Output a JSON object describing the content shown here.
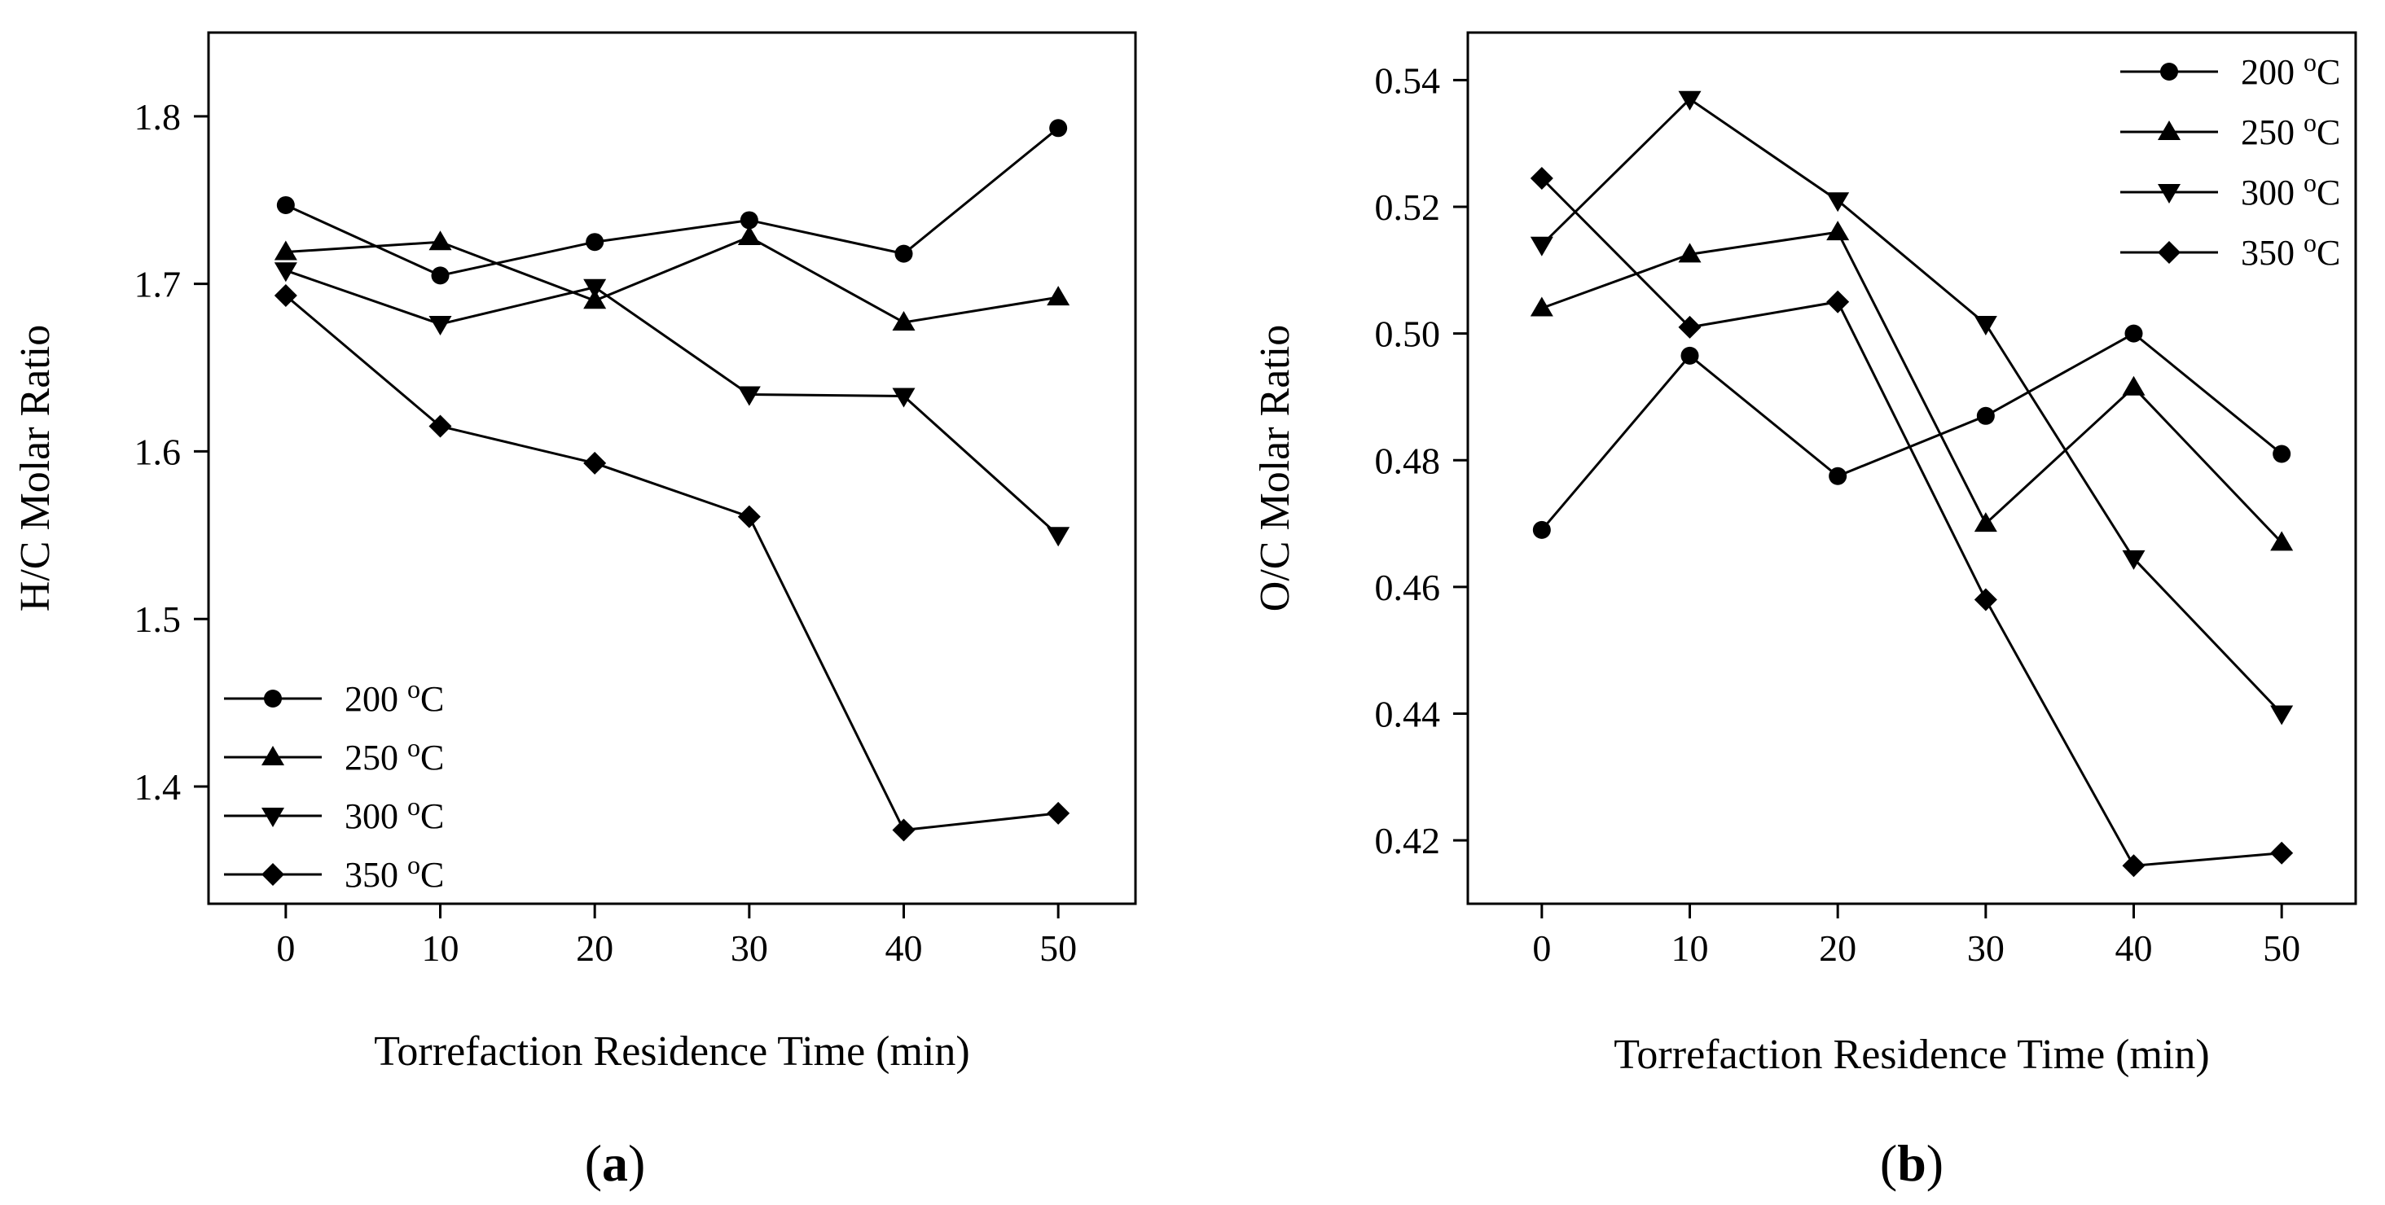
{
  "chart_data": [
    {
      "type": "line",
      "panel_label": "a",
      "xlabel": "Torrefaction Residence Time (min)",
      "ylabel": "H/C Molar Ratio",
      "x": [
        0,
        10,
        20,
        30,
        40,
        50
      ],
      "xticks": [
        "0",
        "10",
        "20",
        "30",
        "40",
        "50"
      ],
      "xlim": [
        -5,
        55
      ],
      "ylim": [
        1.33,
        1.85
      ],
      "yticks": [
        "1.4",
        "1.5",
        "1.6",
        "1.7",
        "1.8"
      ],
      "legend_position": "bottom-left",
      "series": [
        {
          "name": "200",
          "unit": "oC",
          "marker": "circle",
          "values": [
            1.747,
            1.705,
            1.725,
            1.738,
            1.718,
            1.793
          ]
        },
        {
          "name": "250",
          "unit": "oC",
          "marker": "triangle-up",
          "values": [
            1.719,
            1.725,
            1.69,
            1.728,
            1.677,
            1.692
          ]
        },
        {
          "name": "300",
          "unit": "oC",
          "marker": "triangle-down",
          "values": [
            1.708,
            1.676,
            1.698,
            1.634,
            1.633,
            1.55
          ]
        },
        {
          "name": "350",
          "unit": "oC",
          "marker": "diamond",
          "values": [
            1.693,
            1.615,
            1.593,
            1.561,
            1.374,
            1.384
          ]
        }
      ]
    },
    {
      "type": "line",
      "panel_label": "b",
      "xlabel": "Torrefaction Residence Time (min)",
      "ylabel": "O/C Molar Ratio",
      "x": [
        0,
        10,
        20,
        30,
        40,
        50
      ],
      "xticks": [
        "0",
        "10",
        "20",
        "30",
        "40",
        "50"
      ],
      "xlim": [
        -5,
        55
      ],
      "ylim": [
        0.41,
        0.5475
      ],
      "yticks": [
        "0.42",
        "0.44",
        "0.46",
        "0.48",
        "0.50",
        "0.52",
        "0.54"
      ],
      "legend_position": "top-right",
      "series": [
        {
          "name": "200",
          "unit": "oC",
          "marker": "circle",
          "values": [
            0.469,
            0.4965,
            0.4775,
            0.487,
            0.5,
            0.481
          ]
        },
        {
          "name": "250",
          "unit": "oC",
          "marker": "triangle-up",
          "values": [
            0.504,
            0.5125,
            0.516,
            0.47,
            0.4915,
            0.467
          ]
        },
        {
          "name": "300",
          "unit": "oC",
          "marker": "triangle-down",
          "values": [
            0.514,
            0.537,
            0.521,
            0.5015,
            0.4645,
            0.44
          ]
        },
        {
          "name": "350",
          "unit": "oC",
          "marker": "diamond",
          "values": [
            0.5245,
            0.501,
            0.505,
            0.458,
            0.416,
            0.418
          ]
        }
      ]
    }
  ]
}
